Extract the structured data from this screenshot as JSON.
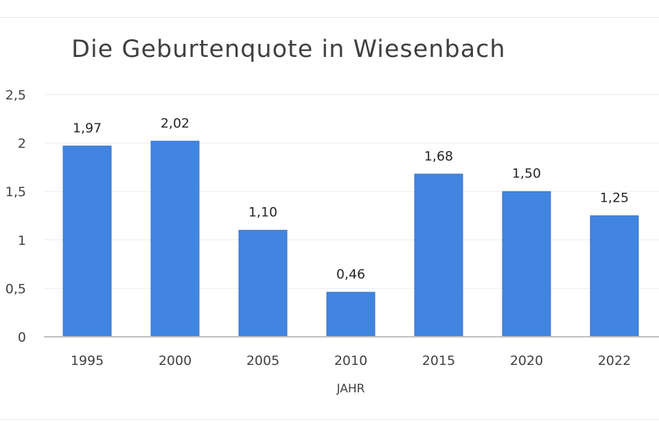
{
  "chart_data": {
    "type": "bar",
    "title": "Die Geburtenquote in Wiesenbach",
    "xlabel": "JAHR",
    "ylabel": "",
    "categories": [
      "1995",
      "2000",
      "2005",
      "2010",
      "2015",
      "2020",
      "2022"
    ],
    "values": [
      1.97,
      2.02,
      1.1,
      0.46,
      1.68,
      1.5,
      1.25
    ],
    "data_labels": [
      "1,97",
      "2,02",
      "1,10",
      "0,46",
      "1,68",
      "1,50",
      "1,25"
    ],
    "ylim": [
      0,
      2.5
    ],
    "yticks": [
      0,
      0.5,
      1,
      1.5,
      2,
      2.5
    ],
    "ytick_labels": [
      "0",
      "0,5",
      "1",
      "1,5",
      "2",
      "2,5"
    ],
    "grid": true,
    "legend": "none",
    "colors": {
      "bar": "#4285e0",
      "bar_edge": "#3a74c4",
      "gridline": "#ececec",
      "axis": "#bfbfbf"
    }
  }
}
